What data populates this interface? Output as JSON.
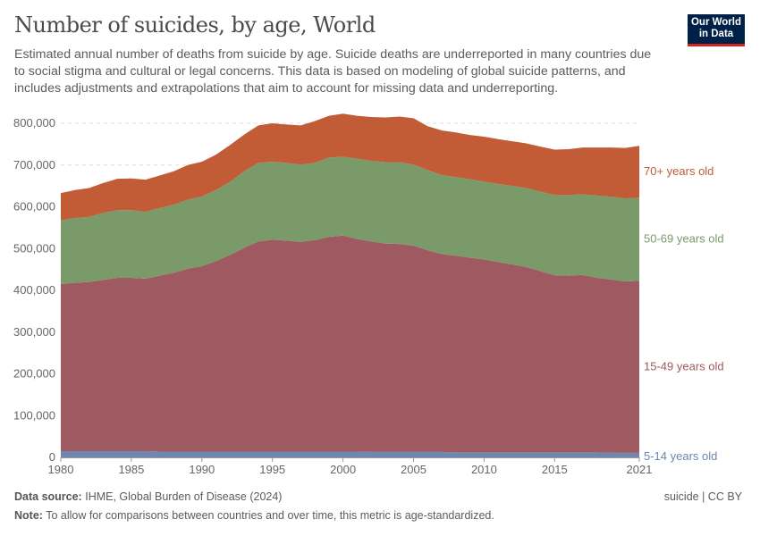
{
  "header": {
    "title": "Number of suicides, by age, World",
    "subtitle": "Estimated annual number of deaths from suicide by age. Suicide deaths are underreported in many countries due to social stigma and cultural or legal concerns. This data is based on modeling of global suicide patterns, and includes adjustments and extrapolations that aim to account for missing data and underreporting.",
    "logo_text": "Our World in Data"
  },
  "footer": {
    "source_label": "Data source:",
    "source": "IHME, Global Burden of Disease (2024)",
    "license": "suicide | CC BY",
    "note_label": "Note:",
    "note": "To allow for comparisons between countries and over time, this metric is age-standardized."
  },
  "chart_data": {
    "type": "area",
    "stacked": true,
    "grid": "horizontal-dashed",
    "legend": "right-inline-labels",
    "xlim": [
      1980,
      2021
    ],
    "ylim": [
      0,
      800000
    ],
    "x_ticks": [
      "1980",
      "1985",
      "1990",
      "1995",
      "2000",
      "2005",
      "2010",
      "2015",
      "2021"
    ],
    "y_ticks": [
      "0",
      "100,000",
      "200,000",
      "300,000",
      "400,000",
      "500,000",
      "600,000",
      "700,000",
      "800,000"
    ],
    "x": [
      1980,
      1981,
      1982,
      1983,
      1984,
      1985,
      1986,
      1987,
      1988,
      1989,
      1990,
      1991,
      1992,
      1993,
      1994,
      1995,
      1996,
      1997,
      1998,
      1999,
      2000,
      2001,
      2002,
      2003,
      2004,
      2005,
      2006,
      2007,
      2008,
      2009,
      2010,
      2011,
      2012,
      2013,
      2014,
      2015,
      2016,
      2017,
      2018,
      2019,
      2020,
      2021
    ],
    "series": [
      {
        "name": "5-14 years old",
        "color": "#6d87b0",
        "values": [
          15000,
          15000,
          15000,
          15000,
          15000,
          15000,
          15000,
          14000,
          14000,
          14000,
          14000,
          14000,
          14000,
          14000,
          14000,
          14000,
          14000,
          14000,
          14000,
          14000,
          14000,
          14000,
          13000,
          13000,
          13000,
          13000,
          13000,
          13000,
          12000,
          12000,
          12000,
          12000,
          12000,
          12000,
          12000,
          12000,
          12000,
          12000,
          12000,
          11000,
          11000,
          11000
        ]
      },
      {
        "name": "15-49 years old",
        "color": "#9e5a60",
        "values": [
          400000,
          403000,
          405000,
          410000,
          415000,
          415000,
          413000,
          421000,
          428000,
          438000,
          444000,
          456000,
          471000,
          488000,
          503000,
          507000,
          505000,
          502000,
          506000,
          514000,
          517000,
          509000,
          504000,
          499000,
          498000,
          494000,
          483000,
          474000,
          471000,
          466000,
          462000,
          456000,
          450000,
          444000,
          434000,
          424000,
          423000,
          425000,
          418000,
          415000,
          410000,
          412000
        ]
      },
      {
        "name": "50-69 years old",
        "color": "#7a9a6a",
        "values": [
          153000,
          155000,
          156000,
          160000,
          162000,
          162000,
          160000,
          162000,
          163000,
          165000,
          167000,
          170000,
          175000,
          183000,
          188000,
          187000,
          186000,
          185000,
          185000,
          190000,
          189000,
          192000,
          193000,
          195000,
          196000,
          194000,
          192000,
          189000,
          188000,
          188000,
          186000,
          187000,
          188000,
          189000,
          190000,
          192000,
          193000,
          193000,
          197000,
          198000,
          199000,
          199000
        ]
      },
      {
        "name": "70+ years old",
        "color": "#c15c37",
        "values": [
          65000,
          67000,
          69000,
          72000,
          75000,
          76000,
          77000,
          78000,
          80000,
          83000,
          83000,
          85000,
          88000,
          88000,
          90000,
          92000,
          92000,
          94000,
          100000,
          100000,
          103000,
          103000,
          105000,
          107000,
          109000,
          111000,
          105000,
          107000,
          107000,
          106000,
          108000,
          107000,
          107000,
          107000,
          108000,
          109000,
          110000,
          112000,
          115000,
          118000,
          121000,
          124000
        ]
      }
    ]
  }
}
